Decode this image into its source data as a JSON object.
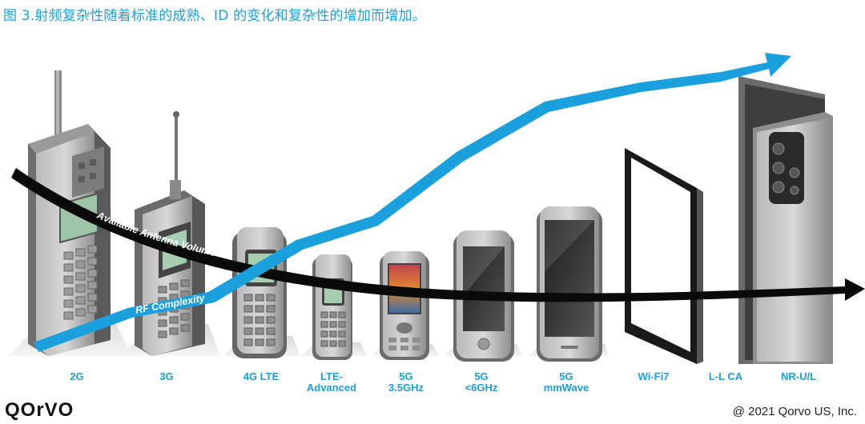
{
  "caption": "图 3.射频复杂性随着标准的成熟、ID 的变化和复杂性的增加而增加。",
  "curves": {
    "antenna_label": "Available Antenna Volume",
    "rf_label": "RF Complexity"
  },
  "generations": [
    {
      "id": "2g",
      "line1": "2G",
      "line2": ""
    },
    {
      "id": "3g",
      "line1": "3G",
      "line2": ""
    },
    {
      "id": "4g-lte",
      "line1": "4G LTE",
      "line2": ""
    },
    {
      "id": "lte-advanced",
      "line1": "LTE-",
      "line2": "Advanced"
    },
    {
      "id": "5g-3-5ghz",
      "line1": "5G",
      "line2": "3.5GHz"
    },
    {
      "id": "5g-sub6",
      "line1": "5G",
      "line2": "<6GHz"
    },
    {
      "id": "5g-mmwave",
      "line1": "5G",
      "line2": "mmWave"
    },
    {
      "id": "wifi7",
      "line1": "Wi-Fi7",
      "line2": ""
    },
    {
      "id": "ll-ca",
      "line1": "L-L CA",
      "line2": ""
    },
    {
      "id": "nr-ul",
      "line1": "NR-U/L",
      "line2": ""
    }
  ],
  "logo": "QOrVO",
  "copyright": "@ 2021 Qorvo US, Inc.",
  "colors": {
    "accent": "#1aa0dc",
    "curve_dark": "#0a0a0a"
  }
}
